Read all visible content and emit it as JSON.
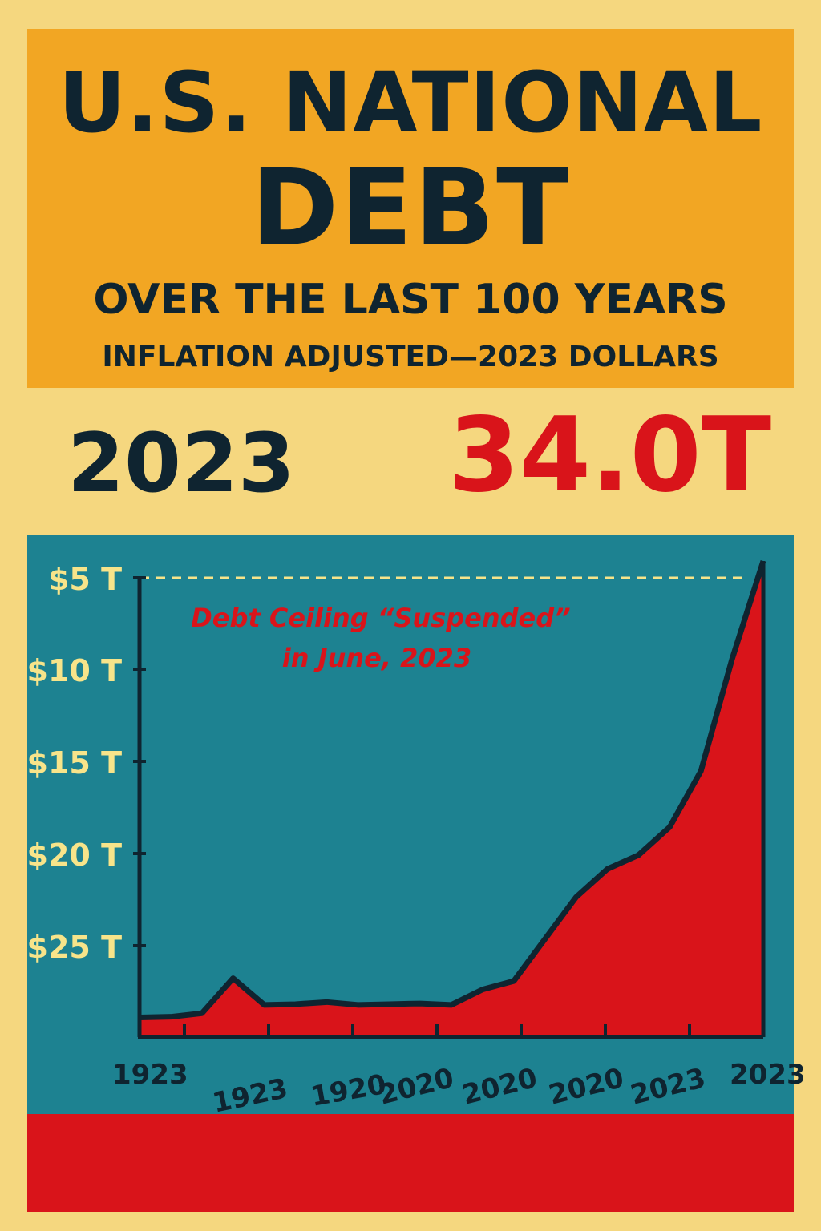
{
  "header": {
    "title_line1": "U.S. NATIONAL",
    "title_line2": "DEBT",
    "subtitle_line1": "OVER THE LAST 100 YEARS",
    "subtitle_line2": "INFLATION ADJUSTED—2023 DOLLARS"
  },
  "highlight": {
    "year": "2023",
    "value": "34.0T"
  },
  "colors": {
    "background": "#f5d77f",
    "header": "#f2a623",
    "panel": "#1d8291",
    "area": "#d9141a",
    "ink": "#0f2430",
    "tick_text": "#f7e48a"
  },
  "chart_data": {
    "type": "area",
    "title": "U.S. NATIONAL DEBT",
    "ylabel": "",
    "xlabel": "",
    "y_ticks": [
      "$5 T",
      "$10 T",
      "$15 T",
      "$20 T",
      "$25 T"
    ],
    "x_ticks": [
      "1923",
      "1923",
      "1920",
      "2020",
      "2020",
      "2020",
      "2023",
      "2023"
    ],
    "annotation_line1": "Debt Ceiling “Suspended”",
    "annotation_line2": "in June, 2023",
    "reference_line": "$5 T",
    "series_note": "",
    "x": [
      0,
      5,
      10,
      15,
      20,
      25,
      30,
      35,
      40,
      45,
      50,
      55,
      60,
      65,
      70,
      75,
      80,
      85,
      90,
      95,
      100
    ],
    "values": [
      1.4,
      1.45,
      1.7,
      4.2,
      2.3,
      2.35,
      2.5,
      2.3,
      2.35,
      2.4,
      2.3,
      3.4,
      4.0,
      7.0,
      10.0,
      12.0,
      13.0,
      15.0,
      19.0,
      27.0,
      34.0
    ],
    "grid": false
  }
}
